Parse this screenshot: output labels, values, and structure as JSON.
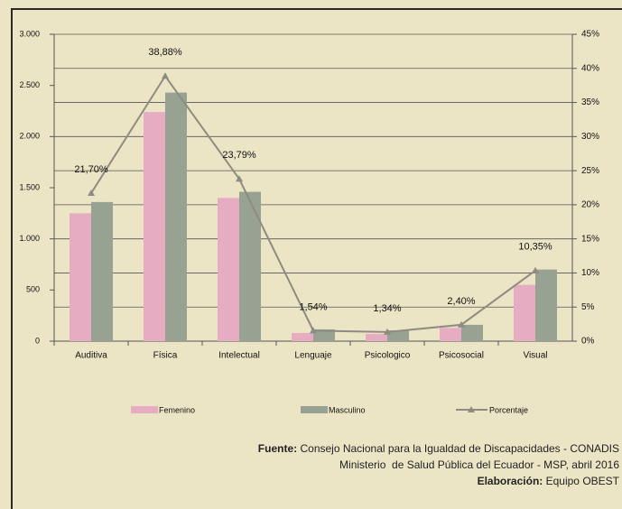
{
  "chart_data": {
    "type": "bar",
    "categories": [
      "Auditiva",
      "Física",
      "Intelectual",
      "Lenguaje",
      "Psicologico",
      "Psicosocial",
      "Visual"
    ],
    "series": [
      {
        "name": "Femenino",
        "color": "#e6adc2",
        "values": [
          1250,
          2240,
          1400,
          80,
          70,
          130,
          550
        ]
      },
      {
        "name": "Masculino",
        "color": "#97a293",
        "values": [
          1360,
          2430,
          1460,
          115,
          105,
          160,
          700
        ]
      },
      {
        "name": "Porcentaje",
        "type": "line",
        "axis": "y2",
        "color": "#8e8c80",
        "values": [
          21.7,
          38.88,
          23.79,
          1.54,
          1.34,
          2.4,
          10.35
        ],
        "value_labels": [
          "21,70%",
          "38,88%",
          "23,79%",
          "1,54%",
          "1,34%",
          "2,40%",
          "10,35%"
        ]
      }
    ],
    "ylim": [
      0,
      3000
    ],
    "yticks": [
      0,
      500,
      {
        "value": 1000,
        "label": "1.000"
      },
      {
        "value": 1500,
        "label": "1.500"
      },
      {
        "value": 2000,
        "label": "2.000"
      },
      {
        "value": 2500,
        "label": "2.500"
      },
      {
        "value": 3000,
        "label": "3.000"
      }
    ],
    "y2lim": [
      0,
      45
    ],
    "y2ticks": [
      {
        "value": 0,
        "label": "0%"
      },
      {
        "value": 5,
        "label": "5%"
      },
      {
        "value": 10,
        "label": "10%"
      },
      {
        "value": 15,
        "label": "15%"
      },
      {
        "value": 20,
        "label": "20%"
      },
      {
        "value": 25,
        "label": "25%"
      },
      {
        "value": 30,
        "label": "30%"
      },
      {
        "value": 35,
        "label": "35%"
      },
      {
        "value": 40,
        "label": "40%"
      },
      {
        "value": 45,
        "label": "45%"
      }
    ],
    "grid": true,
    "legend": "bottom"
  },
  "footer": [
    {
      "bold": "Fuente:",
      "text": " Consejo Nacional para la Igualdad de Discapacidades - CONADIS"
    },
    {
      "text": "Ministerio  de Salud Pública del Ecuador - MSP, abril 2016"
    },
    {
      "bold": "Elaboración:",
      "text": " Equipo OBEST"
    }
  ]
}
